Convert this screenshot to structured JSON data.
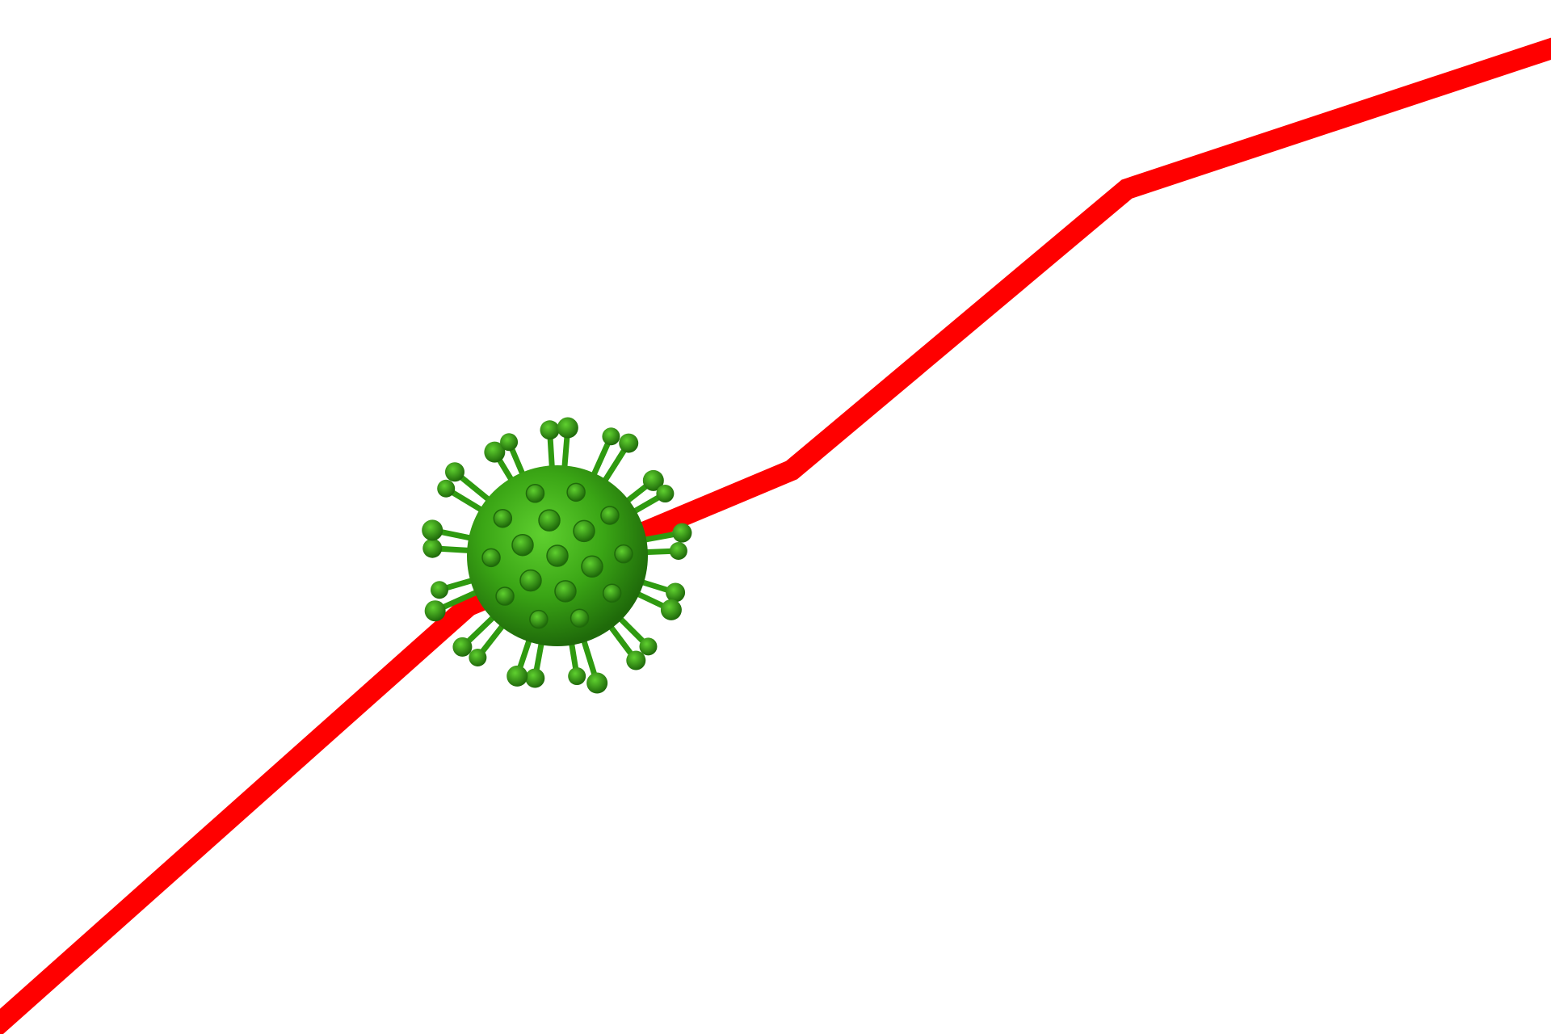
{
  "scene": {
    "background_color": "#ffffff",
    "trend_line": {
      "color": "#ff0000",
      "direction": "rising"
    },
    "virus": {
      "icon": "coronavirus-icon",
      "body_color": "#3aa515",
      "spike_color": "#2f9a10",
      "highlight_color": "#5fd02f",
      "shadow_color": "#1f6a0a"
    }
  }
}
